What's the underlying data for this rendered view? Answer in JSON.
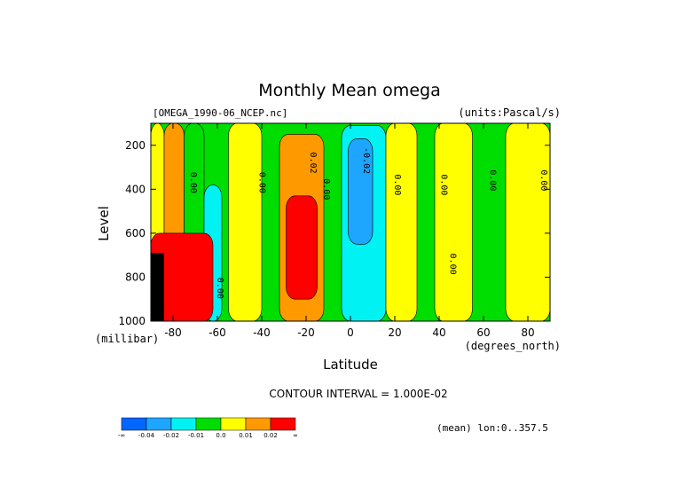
{
  "chart_data": {
    "type": "heatmap",
    "title": "Monthly Mean omega",
    "dataset": "[OMEGA_1990-06_NCEP.nc]",
    "units": "(units:Pascal/s)",
    "xlabel": "Latitude",
    "ylabel": "Level",
    "x_units": "(degrees_north)",
    "y_units": "(millibar)",
    "xlim": [
      -90,
      90
    ],
    "ylim": [
      1000,
      100
    ],
    "x_ticks": [
      -80,
      -60,
      -40,
      -20,
      0,
      20,
      40,
      60,
      80
    ],
    "x_tick_labels": [
      "-80",
      "-60",
      "-40",
      "-20",
      "0",
      "20",
      "40",
      "60",
      "80"
    ],
    "y_ticks": [
      200,
      400,
      600,
      800,
      1000
    ],
    "y_tick_labels": [
      "200",
      "400",
      "600",
      "800",
      "1000"
    ],
    "contour_interval_text": "CONTOUR INTERVAL = 1.000E-02",
    "region_text": "(mean) lon:0..357.5",
    "contour_labels": [
      {
        "text": "0.00",
        "lat": -72,
        "level": 370
      },
      {
        "text": "0.00",
        "lat": -41,
        "level": 370
      },
      {
        "text": "0.02",
        "lat": -18,
        "level": 280
      },
      {
        "text": "0.00",
        "lat": -12,
        "level": 400
      },
      {
        "text": "-0.02",
        "lat": 6,
        "level": 270
      },
      {
        "text": "0.00",
        "lat": 20,
        "level": 380
      },
      {
        "text": "0.00",
        "lat": 41,
        "level": 380
      },
      {
        "text": "0.00",
        "lat": 63,
        "level": 360
      },
      {
        "text": "0.00",
        "lat": 86,
        "level": 360
      },
      {
        "text": "0.00",
        "lat": 45,
        "level": 740
      },
      {
        "text": "0.00",
        "lat": -60,
        "level": 850
      }
    ],
    "bands": [
      {
        "lat": [
          -90,
          -84
        ],
        "level": [
          100,
          1000
        ],
        "value": "0.0"
      },
      {
        "lat": [
          -84,
          -75
        ],
        "level": [
          100,
          1000
        ],
        "value": "0.01"
      },
      {
        "lat": [
          -75,
          -66
        ],
        "level": [
          100,
          1000
        ],
        "value": "-0.01"
      },
      {
        "lat": [
          -66,
          -58
        ],
        "level": [
          380,
          1000
        ],
        "value": "-0.02"
      },
      {
        "lat": [
          -55,
          -40
        ],
        "level": [
          100,
          1000
        ],
        "value": "0.0"
      },
      {
        "lat": [
          -32,
          -12
        ],
        "level": [
          150,
          1000
        ],
        "value": "0.01"
      },
      {
        "lat": [
          -29,
          -15
        ],
        "level": [
          430,
          900
        ],
        "value": "0.02"
      },
      {
        "lat": [
          -4,
          16
        ],
        "level": [
          110,
          1000
        ],
        "value": "-0.02"
      },
      {
        "lat": [
          -1,
          10
        ],
        "level": [
          170,
          650
        ],
        "value": "-0.04"
      },
      {
        "lat": [
          16,
          30
        ],
        "level": [
          100,
          1000
        ],
        "value": "0.0"
      },
      {
        "lat": [
          38,
          55
        ],
        "level": [
          100,
          1000
        ],
        "value": "0.0"
      },
      {
        "lat": [
          70,
          90
        ],
        "level": [
          100,
          1000
        ],
        "value": "0.0"
      },
      {
        "lat": [
          -90,
          -62
        ],
        "level": [
          600,
          1000
        ],
        "value": "0.02"
      }
    ],
    "colorbar": [
      {
        "color": "#0066ff",
        "label": "-∞"
      },
      {
        "color": "#1ea6ff",
        "label": "-0.04"
      },
      {
        "color": "#00f2f2",
        "label": "-0.02"
      },
      {
        "color": "#00dd00",
        "label": "-0.01"
      },
      {
        "color": "#ffff00",
        "label": "0.0"
      },
      {
        "color": "#ff9900",
        "label": "0.01"
      },
      {
        "color": "#ff0000",
        "label": "0.02"
      },
      {
        "color": "",
        "label": "∞"
      }
    ]
  }
}
